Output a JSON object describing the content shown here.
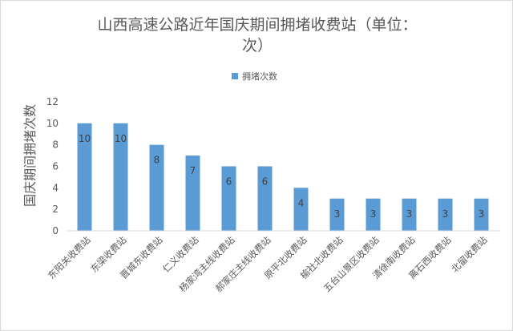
{
  "chart_data": {
    "type": "bar",
    "title_lines": [
      "山西高速公路近年国庆期间拥堵收费站（单位：",
      "次）"
    ],
    "legend": [
      {
        "name": "拥堵次数",
        "color": "#5b9bd5"
      }
    ],
    "legend_position": "top",
    "xlabel": "",
    "ylabel": "国庆期间拥堵次数",
    "ylim": [
      0,
      12
    ],
    "yticks": [
      0,
      2,
      4,
      6,
      8,
      10,
      12
    ],
    "grid": false,
    "categories": [
      "东阳关收费站",
      "东梁收费站",
      "晋城东收费站",
      "仁义收费站",
      "杨家湾主线收费站",
      "郝家庄主线收费站",
      "原平北收费站",
      "榆社北收费站",
      "五台山景区收费站",
      "清徐南收费站",
      "离石西收费站",
      "北留收费站"
    ],
    "series": [
      {
        "name": "拥堵次数",
        "values": [
          10,
          10,
          8,
          7,
          6,
          6,
          4,
          3,
          3,
          3,
          3,
          3
        ]
      }
    ],
    "data_labels": [
      "10",
      "10",
      "8",
      "7",
      "6",
      "6",
      "4",
      "3",
      "3",
      "3",
      "3",
      "3"
    ],
    "bar_color": "#5b9bd5"
  }
}
